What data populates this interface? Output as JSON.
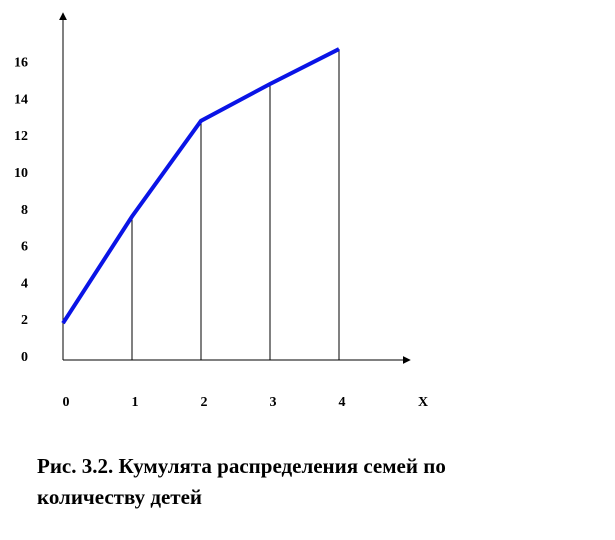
{
  "chart_data": {
    "type": "line",
    "x": [
      0,
      1,
      2,
      3,
      4
    ],
    "values": [
      2,
      7.8,
      13,
      15,
      16.9
    ],
    "xlabel": "X",
    "ylabel": "",
    "xlim": [
      0,
      5
    ],
    "ylim": [
      0,
      18
    ],
    "x_ticks": [
      "0",
      "1",
      "2",
      "3",
      "4"
    ],
    "y_ticks": [
      "0",
      "2",
      "4",
      "6",
      "8",
      "10",
      "12",
      "14",
      "16"
    ],
    "grid": false,
    "drop_lines": true,
    "line_color": "#0a14e6"
  },
  "caption": {
    "text": "Рис. 3.2. Кумулята распределения семей по количеству детей"
  }
}
